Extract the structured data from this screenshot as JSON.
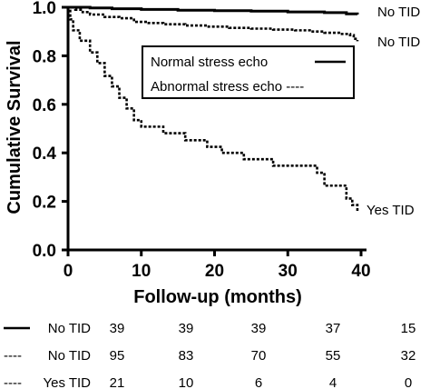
{
  "chart_data": {
    "type": "line",
    "title": "",
    "xlabel": "Follow-up (months)",
    "ylabel": "Cumulative Survival",
    "xlim": [
      0,
      40
    ],
    "ylim": [
      0,
      1.0
    ],
    "x_ticks": [
      0,
      10,
      20,
      30,
      40
    ],
    "y_ticks": [
      0.0,
      0.2,
      0.4,
      0.6,
      0.8,
      1.0
    ],
    "x_tick_labels": [
      "0",
      "10",
      "20",
      "30",
      "40"
    ],
    "y_tick_labels": [
      "0.0",
      "0.2",
      "0.4",
      "0.6",
      "0.8",
      "1.0"
    ],
    "grid": false,
    "legend": {
      "placement": "top-right",
      "entries": [
        {
          "label": "Normal stress echo",
          "style": "solid"
        },
        {
          "label": "Abnormal stress echo ----",
          "style": "dashed"
        }
      ]
    },
    "series": [
      {
        "name": "No TID",
        "style": "solid",
        "points": [
          [
            0,
            1.0
          ],
          [
            3,
            0.997
          ],
          [
            6,
            0.994
          ],
          [
            10,
            0.991
          ],
          [
            15,
            0.988
          ],
          [
            20,
            0.986
          ],
          [
            25,
            0.984
          ],
          [
            30,
            0.981
          ],
          [
            35,
            0.978
          ],
          [
            38,
            0.973
          ],
          [
            39.5,
            0.97
          ]
        ]
      },
      {
        "name": "No TID",
        "style": "dashed",
        "points": [
          [
            0,
            1.0
          ],
          [
            1,
            0.99
          ],
          [
            2,
            0.98
          ],
          [
            3,
            0.97
          ],
          [
            5,
            0.96
          ],
          [
            7,
            0.955
          ],
          [
            9,
            0.94
          ],
          [
            11,
            0.935
          ],
          [
            13,
            0.93
          ],
          [
            16,
            0.925
          ],
          [
            19,
            0.92
          ],
          [
            22,
            0.915
          ],
          [
            25,
            0.912
          ],
          [
            28,
            0.908
          ],
          [
            31,
            0.905
          ],
          [
            33,
            0.9
          ],
          [
            35,
            0.895
          ],
          [
            37,
            0.89
          ],
          [
            38.5,
            0.885
          ],
          [
            39,
            0.87
          ],
          [
            39.5,
            0.86
          ]
        ]
      },
      {
        "name": "Yes TID",
        "style": "dashed",
        "points": [
          [
            0,
            1.0
          ],
          [
            0.3,
            0.95
          ],
          [
            0.7,
            0.905
          ],
          [
            1.6,
            0.862
          ],
          [
            3,
            0.814
          ],
          [
            4,
            0.77
          ],
          [
            5,
            0.717
          ],
          [
            6,
            0.674
          ],
          [
            7,
            0.627
          ],
          [
            8,
            0.583
          ],
          [
            9,
            0.535
          ],
          [
            10,
            0.508
          ],
          [
            13,
            0.481
          ],
          [
            16,
            0.452
          ],
          [
            19,
            0.425
          ],
          [
            21,
            0.4
          ],
          [
            24,
            0.374
          ],
          [
            28,
            0.347
          ],
          [
            34,
            0.318
          ],
          [
            35,
            0.265
          ],
          [
            38,
            0.212
          ],
          [
            38.8,
            0.185
          ],
          [
            39.5,
            0.16
          ]
        ]
      }
    ],
    "annotations": [
      "No TID",
      "No TID",
      "Yes TID"
    ]
  },
  "risk_table": {
    "rows": [
      {
        "line": "solid",
        "label": "No TID",
        "values": [
          "39",
          "39",
          "39",
          "37",
          "15"
        ]
      },
      {
        "line": "----",
        "label": "No TID",
        "values": [
          "95",
          "83",
          "70",
          "55",
          "32"
        ]
      },
      {
        "line": "----",
        "label": "Yes TID",
        "values": [
          "21",
          "10",
          "6",
          "4",
          "0"
        ]
      }
    ]
  }
}
